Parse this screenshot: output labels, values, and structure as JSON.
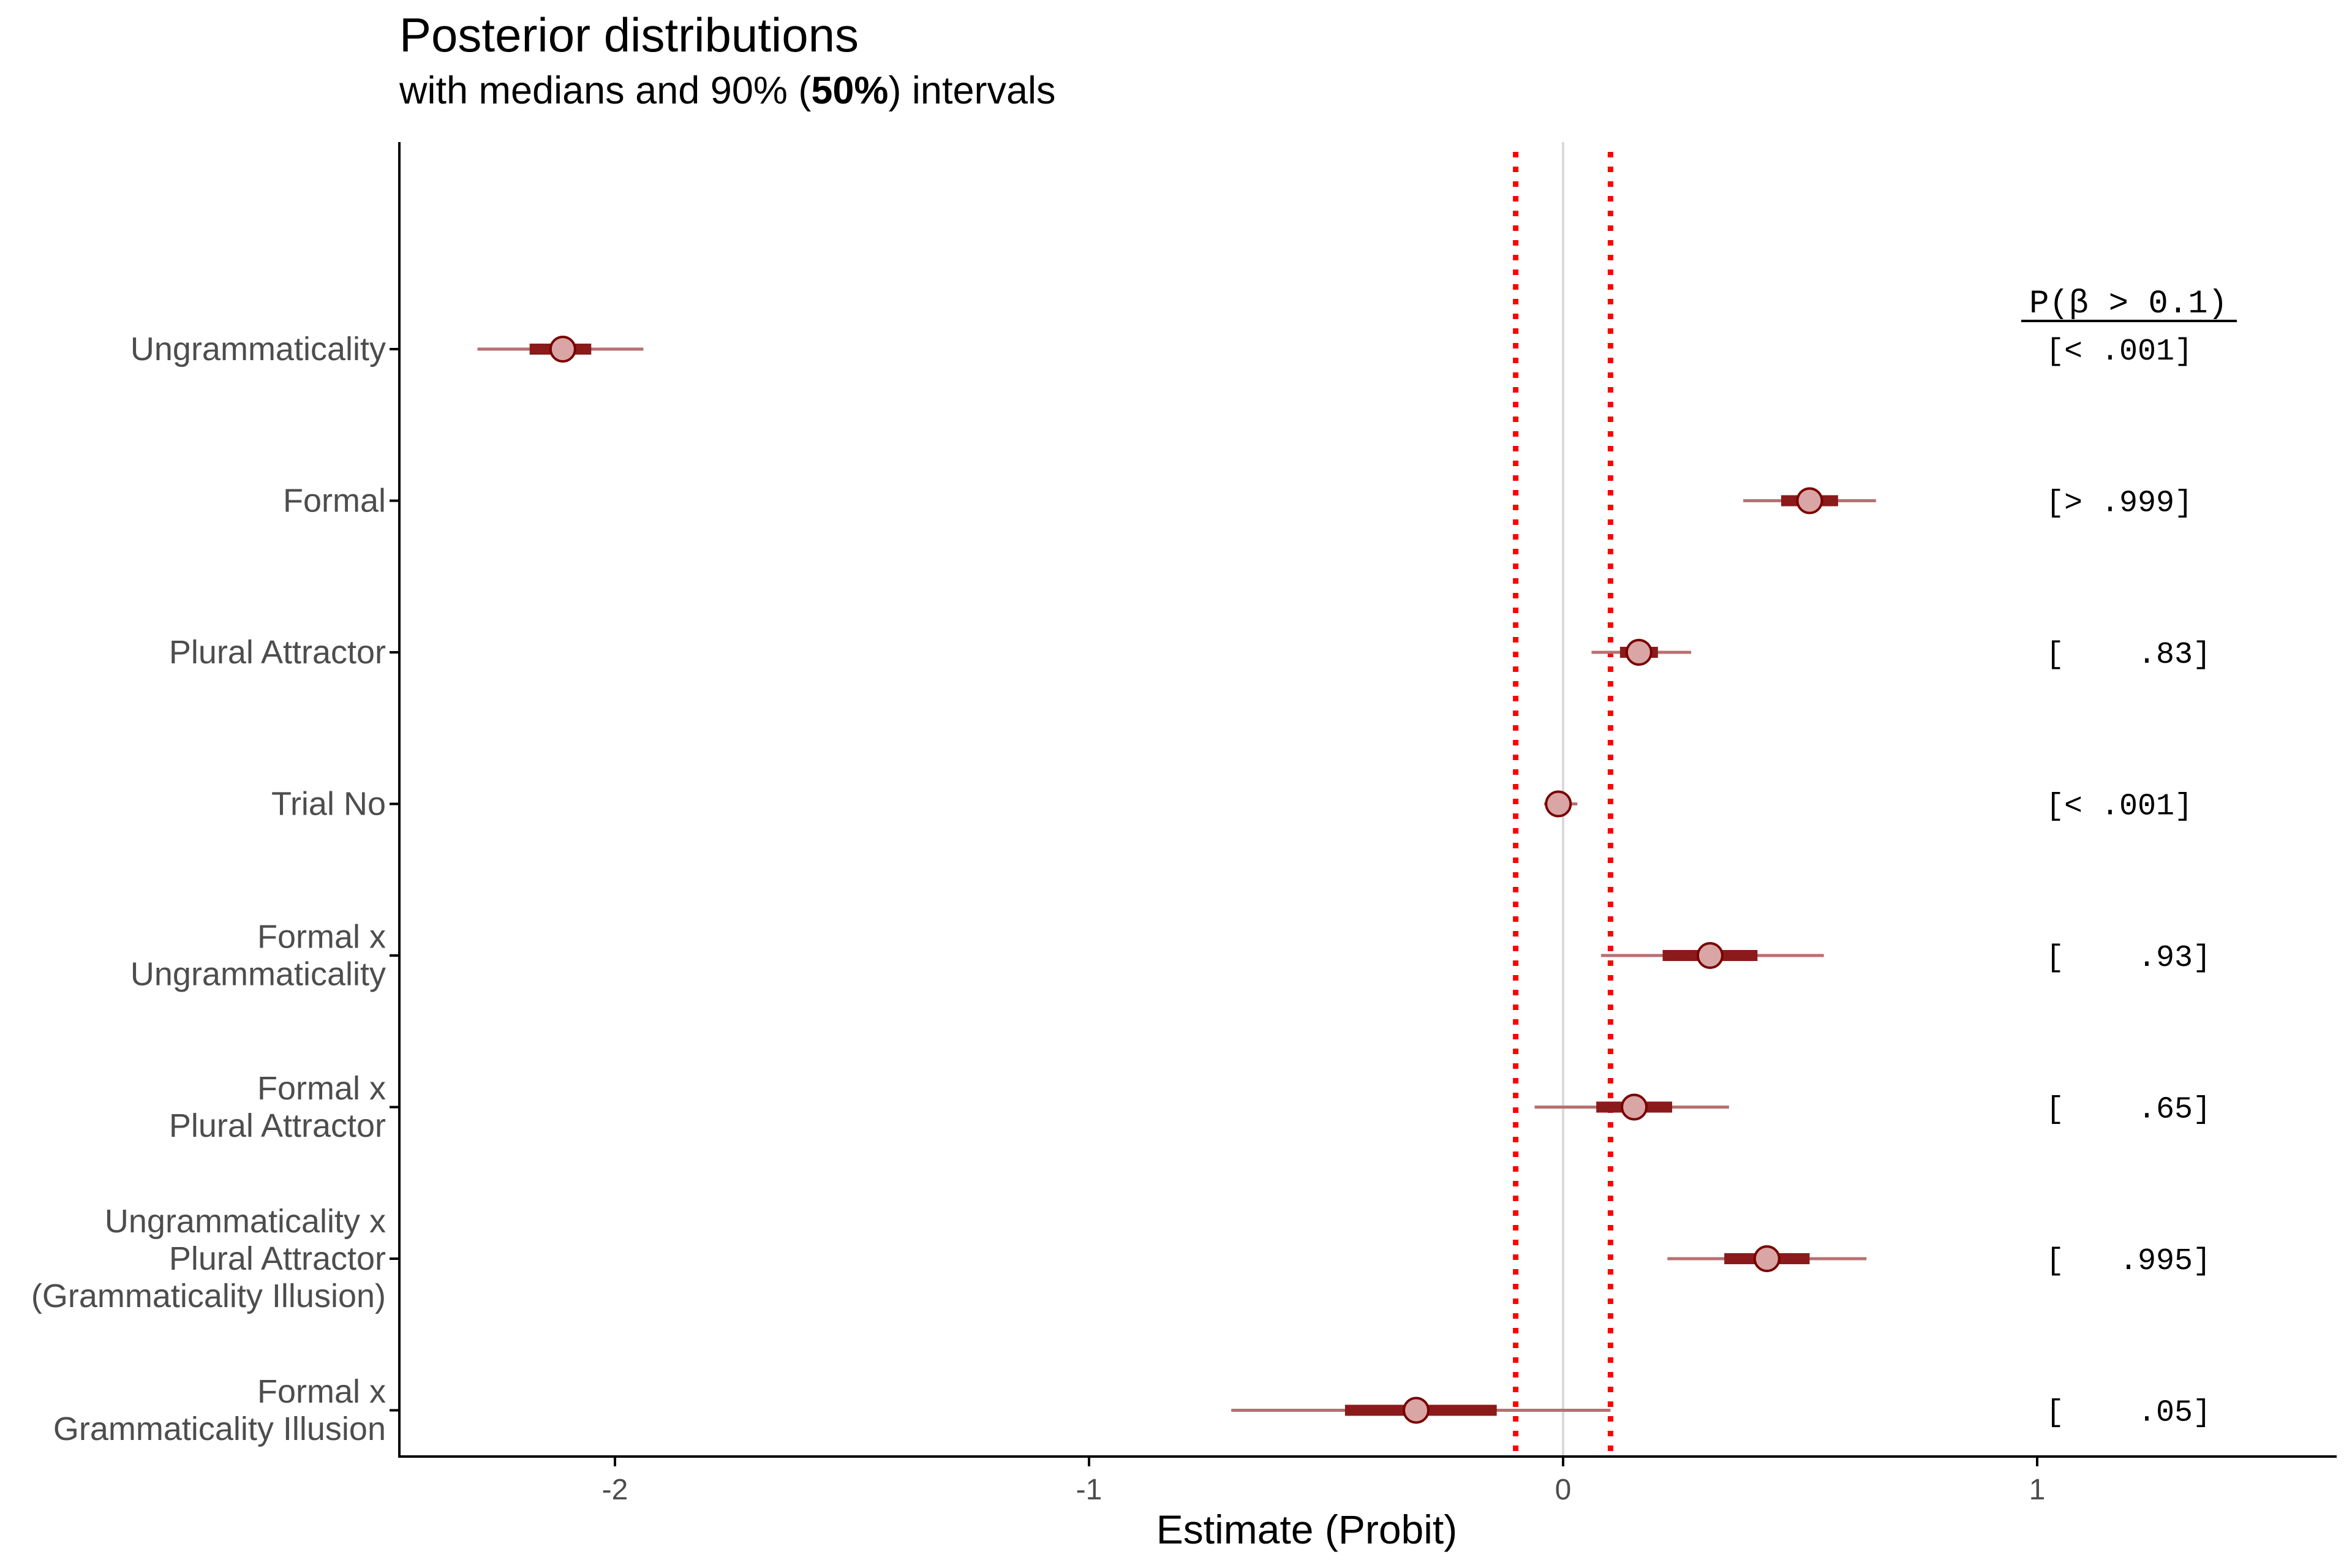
{
  "chart_data": {
    "type": "interval",
    "title": "Posterior distributions",
    "subtitle": {
      "prefix": "with medians and 90% (",
      "bold": "50%",
      "suffix": ") intervals"
    },
    "xlabel": "Estimate (Probit)",
    "xlim": [
      -2.45,
      1.6
    ],
    "xticks": [
      -2,
      -1,
      0,
      1
    ],
    "xtick_labels": [
      "-2",
      "-1",
      "0",
      "1"
    ],
    "reference_lines": {
      "solid_zero": 0,
      "dotted": [
        -0.1,
        0.1
      ]
    },
    "prob_header": "P(β > 0.1)",
    "rows": [
      {
        "label": [
          "Ungrammaticality"
        ],
        "median": -2.11,
        "ci50": [
          -2.18,
          -2.05
        ],
        "ci90": [
          -2.29,
          -1.94
        ],
        "prob": "[< .001]"
      },
      {
        "label": [
          "Formal"
        ],
        "median": 0.52,
        "ci50": [
          0.46,
          0.58
        ],
        "ci90": [
          0.38,
          0.66
        ],
        "prob": "[> .999]"
      },
      {
        "label": [
          "Plural Attractor"
        ],
        "median": 0.16,
        "ci50": [
          0.12,
          0.2
        ],
        "ci90": [
          0.06,
          0.27
        ],
        "prob": "[    .83]"
      },
      {
        "label": [
          "Trial No"
        ],
        "median": -0.01,
        "ci50": [
          -0.02,
          0.0
        ],
        "ci90": [
          -0.04,
          0.03
        ],
        "prob": "[< .001]"
      },
      {
        "label": [
          "Formal x",
          "Ungrammaticality"
        ],
        "median": 0.31,
        "ci50": [
          0.21,
          0.41
        ],
        "ci90": [
          0.08,
          0.55
        ],
        "prob": "[    .93]"
      },
      {
        "label": [
          "Formal x",
          "Plural Attractor"
        ],
        "median": 0.15,
        "ci50": [
          0.07,
          0.23
        ],
        "ci90": [
          -0.06,
          0.35
        ],
        "prob": "[    .65]"
      },
      {
        "label": [
          "Ungrammaticality x",
          "Plural Attractor",
          "(Grammaticality Illusion)"
        ],
        "median": 0.43,
        "ci50": [
          0.34,
          0.52
        ],
        "ci90": [
          0.22,
          0.64
        ],
        "prob": "[   .995]"
      },
      {
        "label": [
          "Formal x",
          "Grammaticality Illusion"
        ],
        "median": -0.31,
        "ci50": [
          -0.46,
          -0.14
        ],
        "ci90": [
          -0.7,
          0.1
        ],
        "prob": "[    .05]"
      }
    ],
    "colors": {
      "interval": "#8b1a1a",
      "thin_interval": "#b87070",
      "point_fill": "#d9a5a5",
      "point_stroke": "#7a0000",
      "dotted": "#ff0000",
      "zero": "#d9d9d9",
      "axis": "#000000"
    }
  }
}
